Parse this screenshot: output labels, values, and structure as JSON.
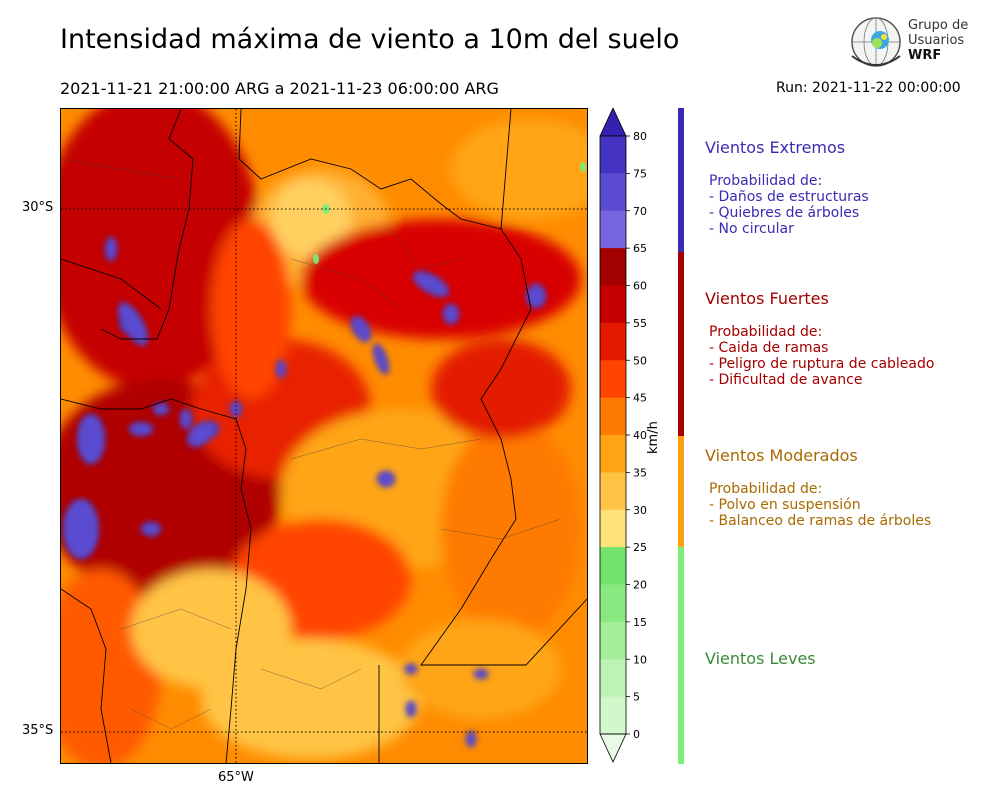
{
  "header": {
    "title": "Intensidad máxima de viento a 10m del suelo",
    "period": "2021-11-21 21:00:00 ARG  a  2021-11-23 06:00:00 ARG",
    "run": "Run: 2021-11-22 00:00:00"
  },
  "logo": {
    "line1": "Grupo de",
    "line2": "Usuarios",
    "line3": "WRF"
  },
  "map": {
    "lat_labels": [
      "30°S",
      "35°S"
    ],
    "lon_labels": [
      "65°W"
    ],
    "gridlines": "dotted"
  },
  "colorbar": {
    "unit": "km/h",
    "ticks": [
      "0",
      "5",
      "10",
      "15",
      "20",
      "25",
      "30",
      "35",
      "40",
      "45",
      "50",
      "55",
      "60",
      "65",
      "70",
      "75",
      "80"
    ],
    "colors": [
      "#e8fbe4",
      "#d2f7cb",
      "#bdf3b3",
      "#a4ee99",
      "#8ae880",
      "#72e46b",
      "#ffe27a",
      "#ffc445",
      "#ffa515",
      "#ff7a00",
      "#ff4500",
      "#e31a00",
      "#c40000",
      "#a30000",
      "#7565df",
      "#5a4bd0",
      "#4533c1",
      "#3322b0"
    ],
    "extend": "both"
  },
  "categories": [
    {
      "name": "Vientos Extremos",
      "color": "#3a2bb3",
      "bar": "#3a2bb3",
      "lines": [
        "Probabilidad de:",
        "- Daños de estructuras",
        "- Quiebres de árboles",
        "- No circular"
      ]
    },
    {
      "name": "Vientos Fuertes",
      "color": "#a30000",
      "bar": "#a30000",
      "lines": [
        "Probabilidad de:",
        "- Caida de ramas",
        "- Peligro de ruptura de cableado",
        "- Dificultad de avance"
      ]
    },
    {
      "name": "Vientos Moderados",
      "color": "#a86a00",
      "bar": "#ffa010",
      "lines": [
        "Probabilidad de:",
        "- Polvo en suspensión",
        "- Balanceo de ramas de árboles"
      ]
    },
    {
      "name": "Vientos Leves",
      "color": "#3a8a3a",
      "bar": "#7af07a",
      "lines": []
    }
  ]
}
